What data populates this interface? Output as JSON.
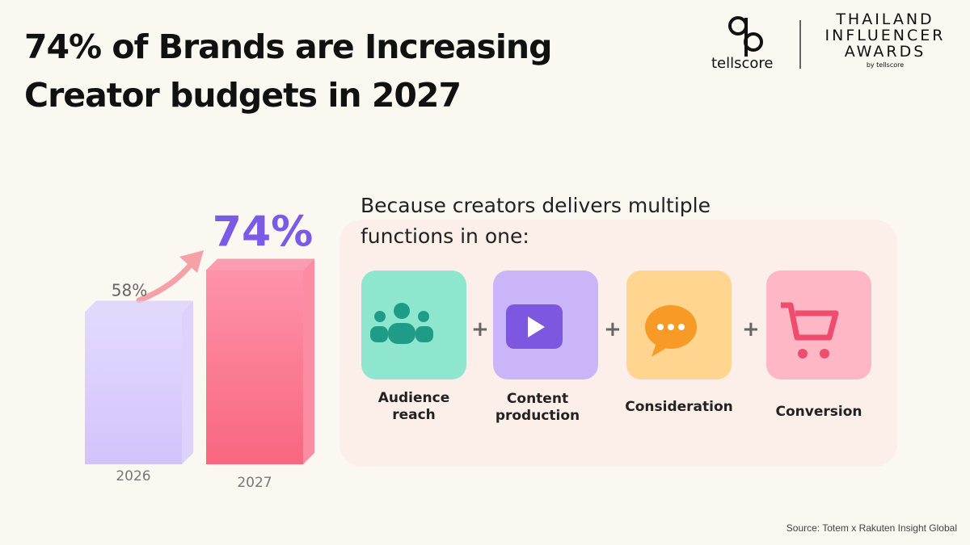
{
  "header": {
    "title": [
      "74% of Brands are Increasing",
      "Creator budgets in 2027"
    ],
    "logo_left": "tellscore",
    "logo_right": [
      "THAILAND",
      "INFLUENCER",
      "AWARDS"
    ],
    "logo_right_by": "by",
    "logo_right_brand": "tellscore"
  },
  "chart_data": {
    "type": "bar",
    "categories": [
      "2026",
      "2027"
    ],
    "values": [
      58,
      74
    ],
    "value_labels": [
      "58%",
      "74%"
    ],
    "colors": [
      "#d9cdfb",
      "#fb7f99"
    ]
  },
  "explanation": {
    "text": "Because creators delivers multiple functions in one:",
    "separator": "+",
    "functions": [
      "Audience reach",
      "Content production",
      "Consideration",
      "Conversion"
    ]
  },
  "source": "Source: Totem x Rakuten Insight Global"
}
